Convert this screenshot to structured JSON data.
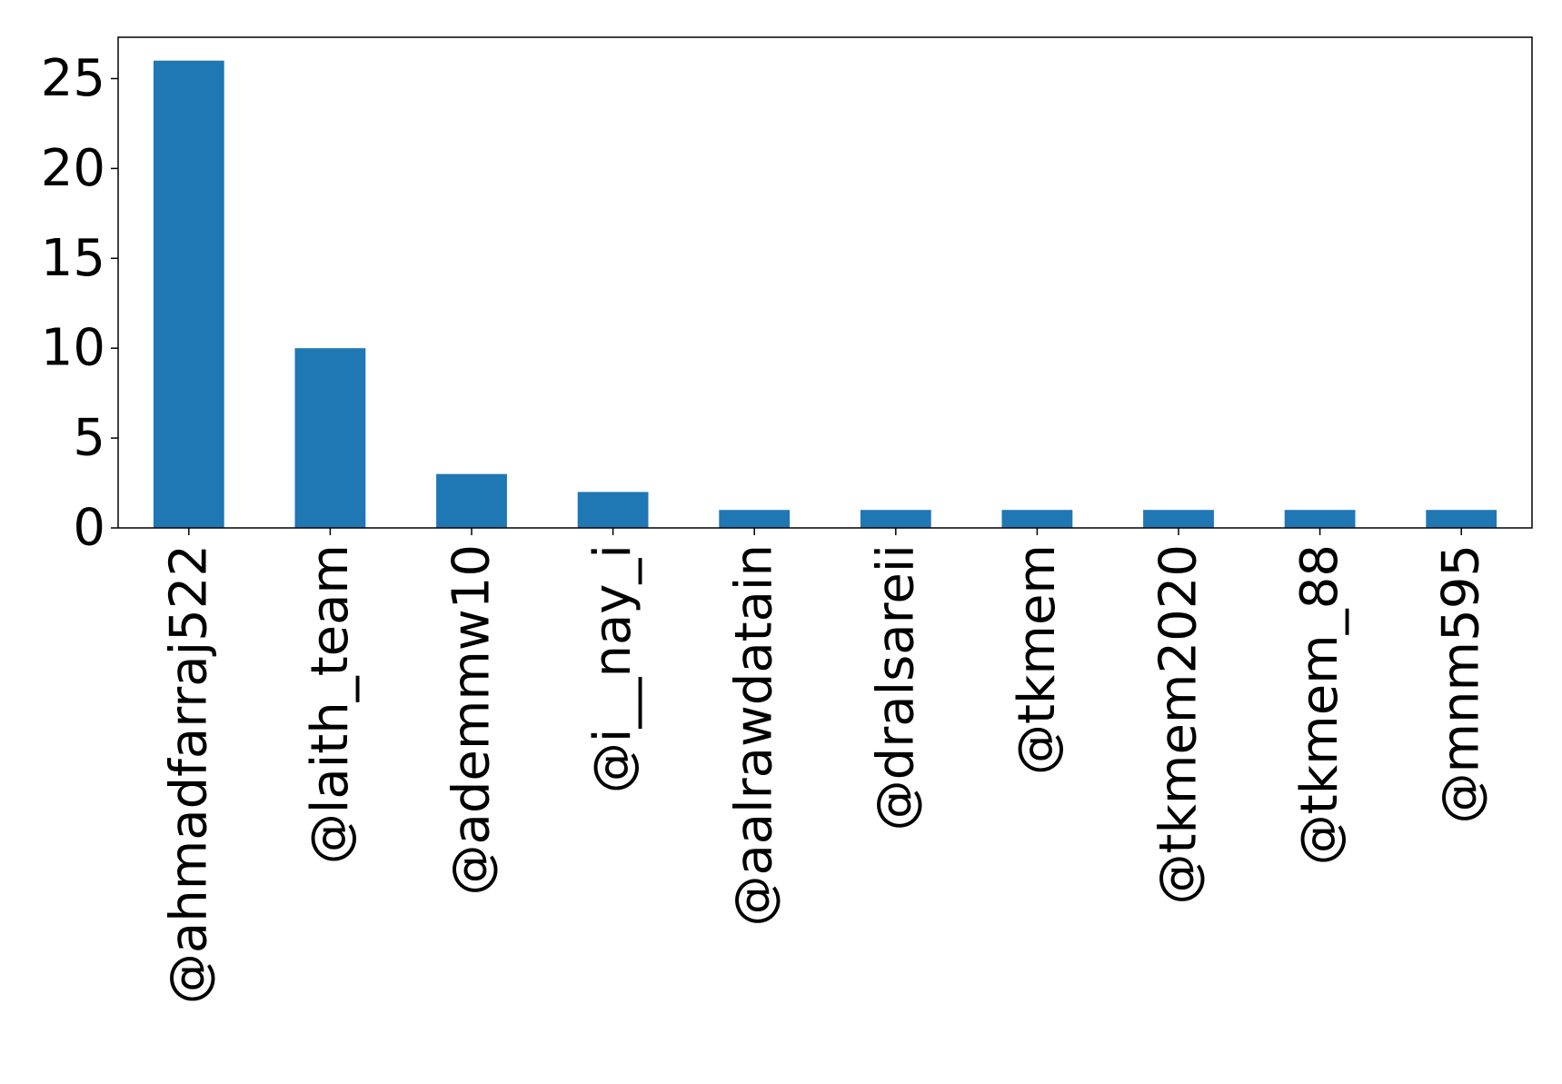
{
  "chart_data": {
    "type": "bar",
    "title": "",
    "xlabel": "",
    "ylabel": "",
    "categories": [
      "@ahmadfarraj522",
      "@laith_team",
      "@ademmw10",
      "@i__nay_i",
      "@aalrawdatain",
      "@dralsareii",
      "@tkmem",
      "@tkmem2020",
      "@tkmem_88",
      "@mnm595"
    ],
    "values": [
      26,
      10,
      3,
      2,
      1,
      1,
      1,
      1,
      1,
      1
    ],
    "ylim": [
      0,
      27.3
    ],
    "yticks": [
      0,
      5,
      10,
      15,
      20,
      25
    ],
    "grid": false,
    "legend": "none",
    "bar_color": "#1f77b4"
  }
}
